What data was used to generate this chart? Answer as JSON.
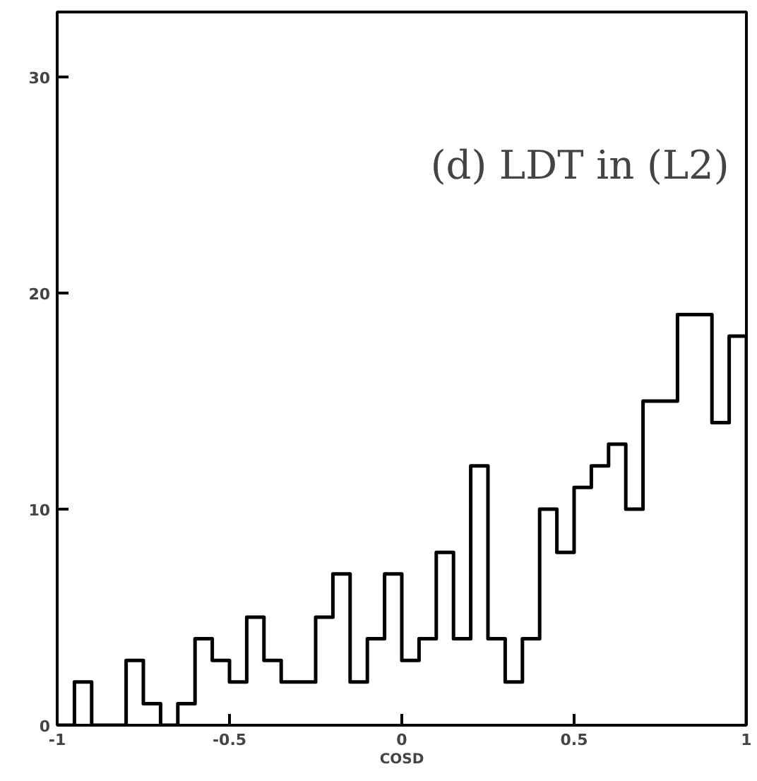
{
  "chart_data": {
    "type": "histogram",
    "xlabel": "COSD",
    "annotations": [
      "(d) LDT in (L2)"
    ],
    "bins": [
      -1,
      -0.95,
      -0.9,
      -0.85,
      -0.8,
      -0.75,
      -0.7,
      -0.65,
      -0.6,
      -0.55,
      -0.5,
      -0.45,
      -0.4,
      -0.35,
      -0.3,
      -0.25,
      -0.2,
      -0.15,
      -0.1,
      -0.05,
      0,
      0.05,
      0.1,
      0.15,
      0.2,
      0.25,
      0.3,
      0.35,
      0.4,
      0.45,
      0.5,
      0.55,
      0.6,
      0.65,
      0.7,
      0.75,
      0.8,
      0.85,
      0.9,
      0.95,
      1
    ],
    "values": [
      0,
      2,
      0,
      0,
      3,
      1,
      0,
      1,
      4,
      3,
      2,
      5,
      3,
      2,
      2,
      5,
      7,
      2,
      4,
      7,
      3,
      4,
      8,
      4,
      12,
      4,
      2,
      4,
      10,
      8,
      11,
      12,
      13,
      10,
      15,
      15,
      19,
      19,
      14,
      18
    ],
    "color": "#000000",
    "xlim": [
      -1,
      1
    ],
    "ylim": [
      0,
      33
    ],
    "xticks": [
      -1,
      -0.5,
      0,
      0.5,
      1
    ],
    "yticks": [
      0,
      10,
      20,
      30
    ],
    "grid": false
  }
}
